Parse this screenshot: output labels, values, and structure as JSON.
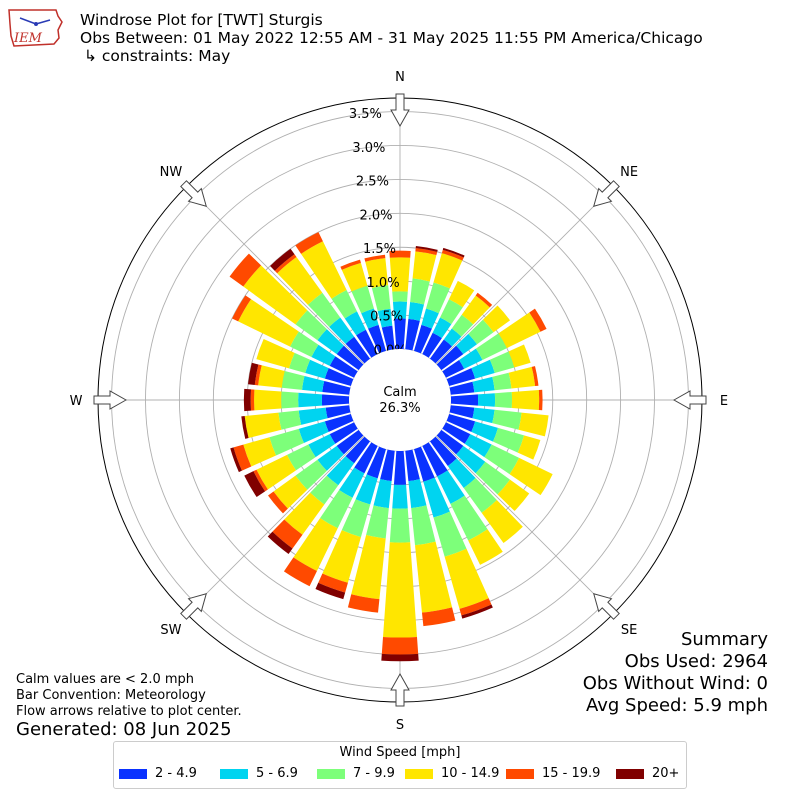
{
  "header": {
    "logo_text": "IEM",
    "title": "Windrose Plot for [TWT] Sturgis",
    "subtitle": "Obs Between: 01 May 2022 12:55 AM - 31 May 2025 11:55 PM America/Chicago",
    "constraints": "↳ constraints: May"
  },
  "notes": {
    "calm_note": "Calm values are < 2.0 mph",
    "bar_convention": "Bar Convention: Meteorology",
    "arrow_note": "Flow arrows relative to plot center.",
    "generated": "Generated: 08 Jun 2025"
  },
  "summary": {
    "title": "Summary",
    "obs_used": "Obs Used: 2964",
    "obs_without_wind": "Obs Without Wind: 0",
    "avg_speed": "Avg Speed: 5.9 mph"
  },
  "legend": {
    "title": "Wind Speed [mph]",
    "items": [
      {
        "label": "2 - 4.9",
        "color": "#0a32ff"
      },
      {
        "label": "5 - 6.9",
        "color": "#00d4f0"
      },
      {
        "label": "7 - 9.9",
        "color": "#7dff7a"
      },
      {
        "label": "10 - 14.9",
        "color": "#ffe600"
      },
      {
        "label": "15 - 19.9",
        "color": "#ff4a00"
      },
      {
        "label": "20+",
        "color": "#800000"
      }
    ]
  },
  "chart_data": {
    "type": "windrose",
    "title": "Windrose Plot for [TWT] Sturgis",
    "center_label": [
      "Calm",
      "26.3%"
    ],
    "calm_percent": 26.3,
    "radial_ticks": [
      "0.0%",
      "0.5%",
      "1.0%",
      "1.5%",
      "2.0%",
      "2.5%",
      "3.0%",
      "3.5%"
    ],
    "radial_max": 3.7,
    "directions": [
      "N",
      "NE",
      "E",
      "SE",
      "S",
      "SW",
      "W",
      "NW"
    ],
    "speed_bins": [
      "2 - 4.9",
      "5 - 6.9",
      "7 - 9.9",
      "10 - 14.9",
      "15 - 19.9",
      "20+"
    ],
    "bin_colors": [
      "#0a32ff",
      "#00d4f0",
      "#7dff7a",
      "#ffe600",
      "#ff4a00",
      "#800000"
    ],
    "sector_degrees": [
      0,
      10,
      20,
      30,
      40,
      50,
      60,
      70,
      80,
      90,
      100,
      110,
      120,
      130,
      140,
      150,
      160,
      170,
      180,
      190,
      200,
      210,
      220,
      230,
      240,
      250,
      260,
      270,
      280,
      290,
      300,
      310,
      320,
      330,
      340,
      350
    ],
    "sectors": [
      [
        0.45,
        0.25,
        0.15,
        0.5,
        0.1,
        0.0
      ],
      [
        0.45,
        0.25,
        0.35,
        0.4,
        0.05,
        0.03
      ],
      [
        0.4,
        0.25,
        0.4,
        0.45,
        0.05,
        0.03
      ],
      [
        0.35,
        0.25,
        0.3,
        0.3,
        0.0,
        0.0
      ],
      [
        0.35,
        0.2,
        0.25,
        0.35,
        0.05,
        0.0
      ],
      [
        0.4,
        0.25,
        0.3,
        0.3,
        0.0,
        0.0
      ],
      [
        0.3,
        0.3,
        0.4,
        0.55,
        0.1,
        0.0
      ],
      [
        0.4,
        0.3,
        0.3,
        0.25,
        0.0,
        0.0
      ],
      [
        0.35,
        0.3,
        0.25,
        0.35,
        0.05,
        0.0
      ],
      [
        0.4,
        0.25,
        0.25,
        0.4,
        0.05,
        0.0
      ],
      [
        0.35,
        0.3,
        0.4,
        0.4,
        0.0,
        0.0
      ],
      [
        0.4,
        0.35,
        0.4,
        0.25,
        0.0,
        0.0
      ],
      [
        0.4,
        0.35,
        0.45,
        0.55,
        0.0,
        0.0
      ],
      [
        0.4,
        0.4,
        0.45,
        0.35,
        0.0,
        0.0
      ],
      [
        0.45,
        0.4,
        0.45,
        0.55,
        0.0,
        0.0
      ],
      [
        0.5,
        0.45,
        0.6,
        0.4,
        0.0,
        0.0
      ],
      [
        0.5,
        0.55,
        0.6,
        0.8,
        0.1,
        0.05
      ],
      [
        0.45,
        0.4,
        0.55,
        1.0,
        0.2,
        0.0
      ],
      [
        0.5,
        0.35,
        0.5,
        1.4,
        0.25,
        0.1
      ],
      [
        0.45,
        0.4,
        0.45,
        0.9,
        0.2,
        0.0
      ],
      [
        0.45,
        0.4,
        0.5,
        0.7,
        0.15,
        0.1
      ],
      [
        0.45,
        0.4,
        0.5,
        0.7,
        0.25,
        0.0
      ],
      [
        0.4,
        0.4,
        0.35,
        0.55,
        0.25,
        0.1
      ],
      [
        0.4,
        0.35,
        0.4,
        0.4,
        0.1,
        0.0
      ],
      [
        0.4,
        0.35,
        0.35,
        0.5,
        0.05,
        0.15
      ],
      [
        0.4,
        0.4,
        0.45,
        0.4,
        0.15,
        0.05
      ],
      [
        0.35,
        0.4,
        0.3,
        0.5,
        0.0,
        0.05
      ],
      [
        0.4,
        0.35,
        0.25,
        0.4,
        0.05,
        0.1
      ],
      [
        0.4,
        0.3,
        0.3,
        0.35,
        0.05,
        0.1
      ],
      [
        0.4,
        0.3,
        0.25,
        0.5,
        0.0,
        0.0
      ],
      [
        0.4,
        0.3,
        0.35,
        0.85,
        0.1,
        0.0
      ],
      [
        0.4,
        0.35,
        0.4,
        0.95,
        0.25,
        0.0
      ],
      [
        0.4,
        0.35,
        0.45,
        0.65,
        0.05,
        0.1
      ],
      [
        0.4,
        0.3,
        0.35,
        0.8,
        0.15,
        0.0
      ],
      [
        0.4,
        0.25,
        0.35,
        0.35,
        0.05,
        0.0
      ],
      [
        0.35,
        0.25,
        0.35,
        0.4,
        0.05,
        0.0
      ]
    ]
  }
}
